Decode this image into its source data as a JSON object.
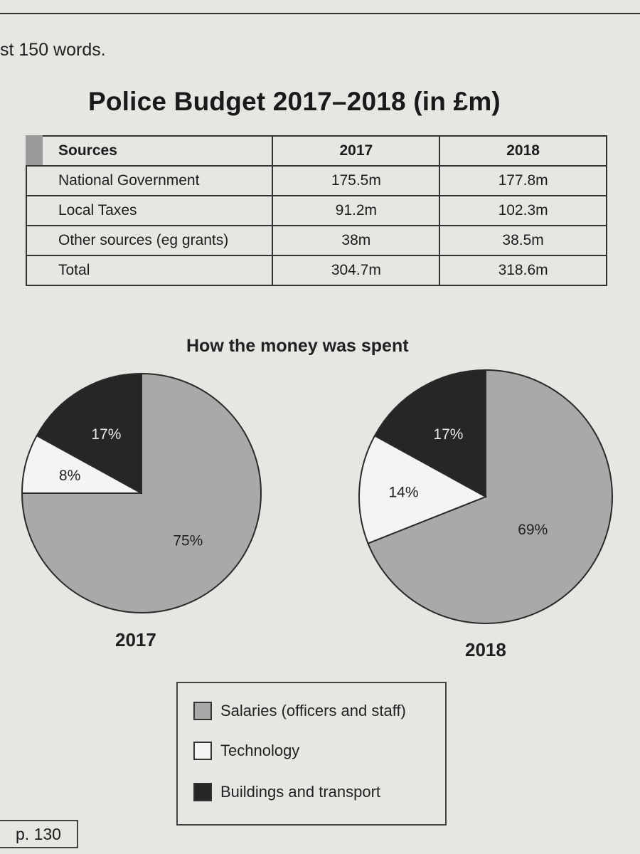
{
  "header": {
    "instruction": "st 150 words.",
    "title": "Police Budget 2017–2018 (in £m)"
  },
  "table": {
    "columns": [
      "Sources",
      "2017",
      "2018"
    ],
    "rows": [
      {
        "label": "National Government",
        "v2017": "175.5m",
        "v2018": "177.8m"
      },
      {
        "label": "Local Taxes",
        "v2017": "91.2m",
        "v2018": "102.3m"
      },
      {
        "label": "Other sources (eg grants)",
        "v2017": "38m",
        "v2018": "38.5m"
      },
      {
        "label": "Total",
        "v2017": "304.7m",
        "v2018": "318.6m"
      }
    ]
  },
  "chart_data": [
    {
      "type": "table",
      "title": "Police Budget 2017–2018 (in £m)",
      "columns": [
        "Sources",
        "2017",
        "2018"
      ],
      "rows": [
        [
          "National Government",
          175.5,
          177.8
        ],
        [
          "Local Taxes",
          91.2,
          102.3
        ],
        [
          "Other sources (eg grants)",
          38,
          38.5
        ],
        [
          "Total",
          304.7,
          318.6
        ]
      ]
    },
    {
      "type": "pie",
      "title": "How the money was spent",
      "caption": "2017",
      "slices": [
        {
          "name": "Salaries (officers and staff)",
          "value": 75,
          "label": "75%"
        },
        {
          "name": "Technology",
          "value": 8,
          "label": "8%"
        },
        {
          "name": "Buildings and transport",
          "value": 17,
          "label": "17%"
        }
      ]
    },
    {
      "type": "pie",
      "title": "How the money was spent",
      "caption": "2018",
      "slices": [
        {
          "name": "Salaries (officers and staff)",
          "value": 69,
          "label": "69%"
        },
        {
          "name": "Technology",
          "value": 14,
          "label": "14%"
        },
        {
          "name": "Buildings and transport",
          "value": 17,
          "label": "17%"
        }
      ]
    }
  ],
  "spend_title": "How the money was spent",
  "legend": [
    {
      "label": "Salaries (officers and staff)",
      "color": "#a9a9a7"
    },
    {
      "label": "Technology",
      "color": "#f4f4f2"
    },
    {
      "label": "Buildings and transport",
      "color": "#262626"
    }
  ],
  "page_ref": "p. 130"
}
